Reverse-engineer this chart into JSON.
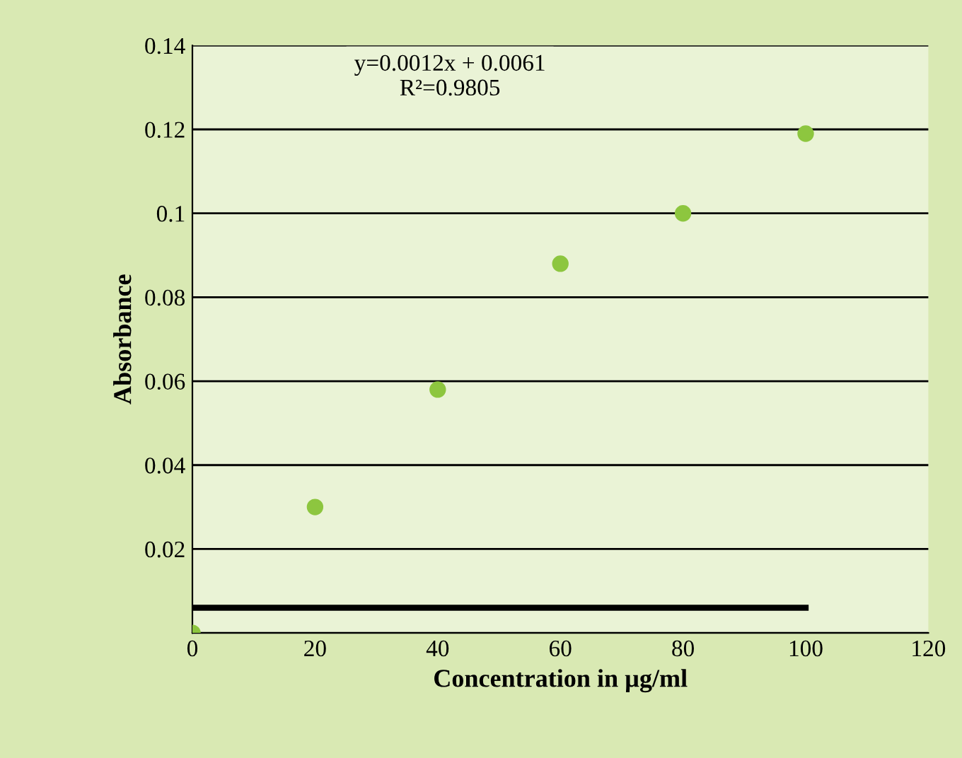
{
  "chart_data": {
    "type": "scatter",
    "xlabel": "Concentration in µg/ml",
    "ylabel": "Absorbance",
    "annotations": [
      "y=0.0012x + 0.0061",
      "R²=0.9805"
    ],
    "x": [
      0,
      20,
      40,
      60,
      80,
      100
    ],
    "series": [
      {
        "color": "#8dc63f",
        "values": [
          0.0,
          0.03,
          0.058,
          0.088,
          0.1,
          0.119
        ],
        "marker": "circle"
      },
      {
        "type": "line",
        "color": "#000000",
        "x": [
          0,
          100
        ],
        "values": [
          0.006,
          0.006
        ],
        "marker": "none"
      }
    ],
    "xlim": [
      0,
      120
    ],
    "xticks": [
      0,
      20,
      40,
      60,
      80,
      100,
      120
    ],
    "ylim": [
      0,
      0.14
    ],
    "yticks": [
      {
        "value": 0,
        "label": null
      },
      0.02,
      0.04,
      0.06,
      0.08,
      {
        "value": 0.1,
        "label": "0.1"
      },
      0.12,
      0.14
    ],
    "grid": "y",
    "legend": false
  }
}
